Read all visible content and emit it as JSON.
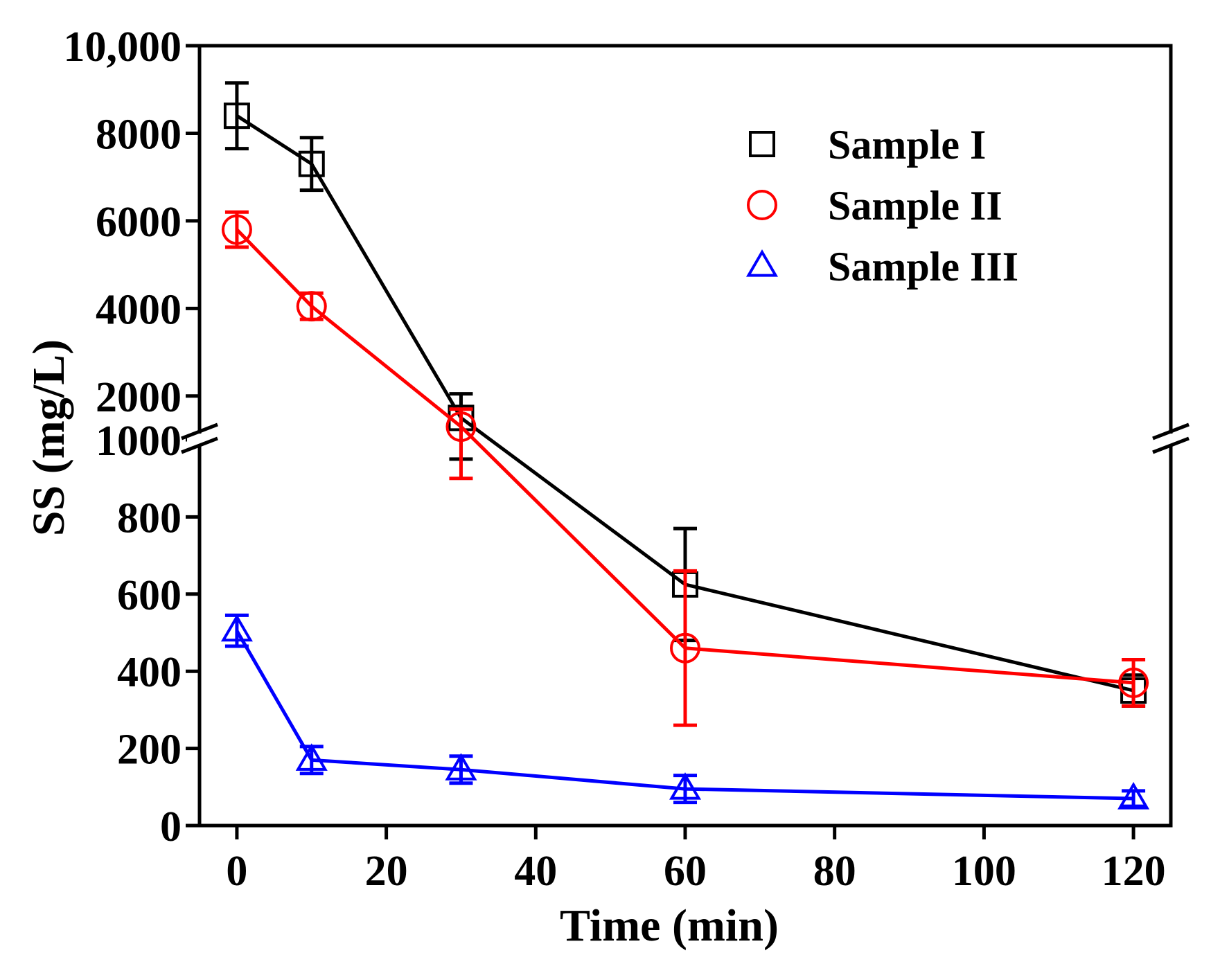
{
  "chart_data": {
    "type": "line",
    "title": "",
    "xlabel": "Time (min)",
    "ylabel": "SS (mg/L)",
    "x": [
      0,
      10,
      30,
      60,
      120
    ],
    "xlim": [
      -5,
      125
    ],
    "xticks": [
      0,
      20,
      40,
      60,
      80,
      100,
      120
    ],
    "xtick_labels": [
      "0",
      "20",
      "40",
      "60",
      "80",
      "100",
      "120"
    ],
    "y_axis_break": {
      "lower_range": [
        0,
        1000
      ],
      "upper_range": [
        1000,
        10000
      ],
      "lower_ticks": [
        0,
        200,
        400,
        600,
        800,
        1000
      ],
      "lower_tick_labels": [
        "0",
        "200",
        "400",
        "600",
        "800",
        "1000"
      ],
      "upper_ticks": [
        2000,
        4000,
        6000,
        8000,
        10000
      ],
      "upper_tick_labels": [
        "2000",
        "4000",
        "6000",
        "8000",
        "10,000"
      ]
    },
    "series": [
      {
        "name": "Sample I",
        "marker": "square",
        "color": "#000000",
        "values": [
          8400,
          7300,
          1500,
          625,
          350
        ],
        "errors": [
          750,
          600,
          550,
          145,
          40
        ]
      },
      {
        "name": "Sample II",
        "marker": "circle",
        "color": "#ff0000",
        "values": [
          5800,
          4050,
          1300,
          460,
          370
        ],
        "errors": [
          400,
          300,
          400,
          200,
          60
        ]
      },
      {
        "name": "Sample III",
        "marker": "triangle",
        "color": "#0000ff",
        "values": [
          505,
          170,
          145,
          95,
          70
        ],
        "errors": [
          40,
          35,
          35,
          35,
          20
        ]
      }
    ],
    "legend": {
      "position": "top-right"
    },
    "grid": false
  }
}
